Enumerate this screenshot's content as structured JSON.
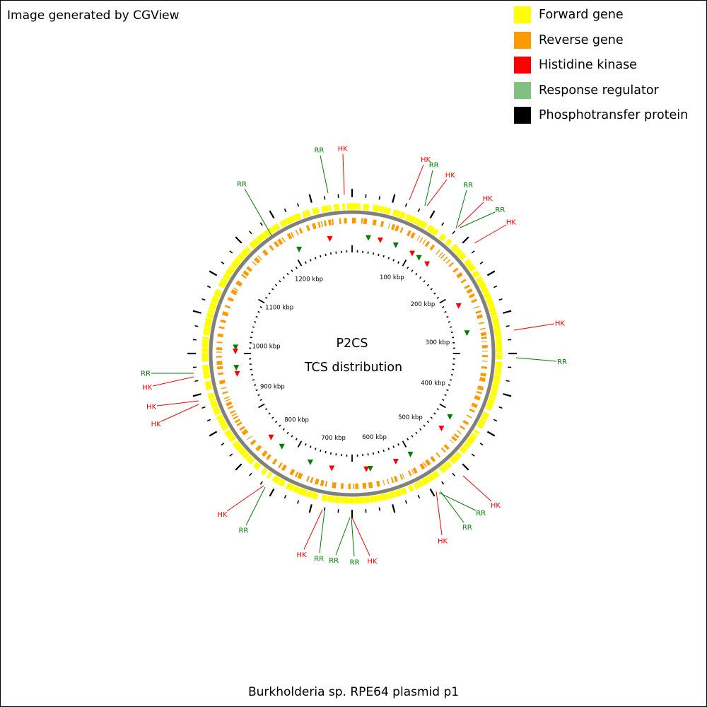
{
  "credit": "Image generated by CGView",
  "legend": [
    {
      "label": "Forward gene",
      "color": "#ffff00"
    },
    {
      "label": "Reverse gene",
      "color": "#ff9900"
    },
    {
      "label": "Histidine kinase",
      "color": "#ff0000"
    },
    {
      "label": "Response regulator",
      "color": "#80c080"
    },
    {
      "label": "Phosphotransfer protein",
      "color": "#000000"
    }
  ],
  "center": {
    "line1": "P2CS",
    "line2": "TCS distribution"
  },
  "plasmid_name": "Burkholderia sp. RPE64 plasmid p1",
  "scale_labels": [
    "100 kbp",
    "200 kbp",
    "300 kbp",
    "400 kbp",
    "500 kbp",
    "600 kbp",
    "700 kbp",
    "800 kbp",
    "900 kbp",
    "1000 kbp",
    "1100 kbp",
    "1200 kbp"
  ],
  "colors": {
    "hk": "#ff0000",
    "rr": "#008000",
    "forward": "#ffff00",
    "reverse": "#ff9900",
    "backbone": "#808080"
  }
}
